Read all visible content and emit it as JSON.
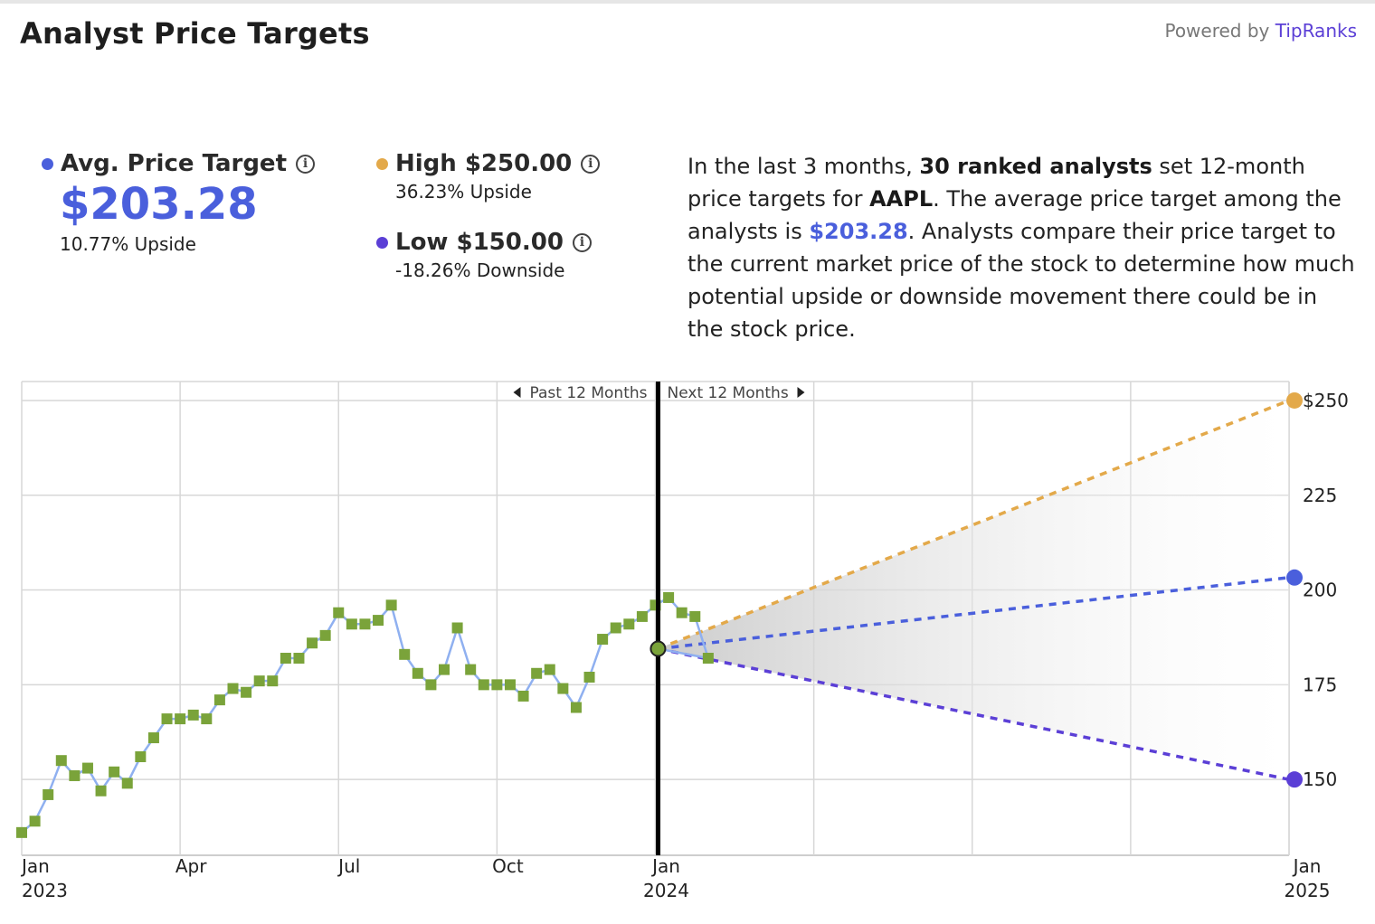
{
  "header": {
    "title": "Analyst Price Targets",
    "powered_prefix": "Powered by",
    "powered_brand": "TipRanks"
  },
  "stats": {
    "avg": {
      "label": "Avg. Price Target",
      "value": "$203.28",
      "sub": "10.77% Upside",
      "color": "#4a5fdc"
    },
    "high": {
      "label": "High $250.00",
      "sub": "36.23% Upside",
      "color": "#e3a94a"
    },
    "low": {
      "label": "Low $150.00",
      "sub": "-18.26% Downside",
      "color": "#5b3fd6"
    }
  },
  "description": {
    "p1": "In the last 3 months, ",
    "count": "30 ranked analysts",
    "p2": " set 12-month price targets for ",
    "ticker": "AAPL",
    "p3": ". The average price target among the analysts is ",
    "avg": "$203.28",
    "p4": ". Analysts compare their price target to the current market price of the stock to determine how much potential upside or downside movement there could be in the stock price."
  },
  "chart_data": {
    "type": "line",
    "x_unit": "months since Jan 2023",
    "ylim": [
      130,
      255
    ],
    "xlim": [
      0,
      24
    ],
    "y_ticks": [
      {
        "value": 150,
        "label": "150"
      },
      {
        "value": 175,
        "label": "175"
      },
      {
        "value": 200,
        "label": "200"
      },
      {
        "value": 225,
        "label": "225"
      },
      {
        "value": 250,
        "label": "$250"
      }
    ],
    "x_ticks": [
      {
        "x": 0,
        "line1": "Jan",
        "line2": "2023"
      },
      {
        "x": 3,
        "line1": "Apr",
        "line2": ""
      },
      {
        "x": 6,
        "line1": "Jul",
        "line2": ""
      },
      {
        "x": 9,
        "line1": "Oct",
        "line2": ""
      },
      {
        "x": 12,
        "line1": "Jan",
        "line2": "2024"
      },
      {
        "x": 24,
        "line1": "Jan",
        "line2": "2025"
      }
    ],
    "extra_gridlines_x": [
      15,
      18,
      21
    ],
    "split_x": 12,
    "past_label": "Past 12 Months",
    "next_label": "Next 12 Months",
    "price_series": {
      "x": [
        0,
        0.25,
        0.5,
        0.75,
        1.0,
        1.25,
        1.5,
        1.75,
        2.0,
        2.25,
        2.5,
        2.75,
        3.0,
        3.25,
        3.5,
        3.75,
        4.0,
        4.25,
        4.5,
        4.75,
        5.0,
        5.25,
        5.5,
        5.75,
        6.0,
        6.25,
        6.5,
        6.75,
        7.0,
        7.25,
        7.5,
        7.75,
        8.0,
        8.25,
        8.5,
        8.75,
        9.0,
        9.25,
        9.5,
        9.75,
        10.0,
        10.25,
        10.5,
        10.75,
        11.0,
        11.25,
        11.5,
        11.75
      ],
      "y": [
        136,
        139,
        146,
        155,
        151,
        153,
        147,
        152,
        149,
        156,
        161,
        166,
        166,
        167,
        166,
        171,
        174,
        173,
        176,
        176,
        182,
        182,
        186,
        188,
        194,
        191,
        191,
        192,
        196,
        183,
        178,
        175,
        179,
        190,
        179,
        175,
        175,
        175,
        172,
        178,
        179,
        174,
        169,
        177,
        187,
        190,
        191,
        193
      ],
      "tail_x": [
        11.75,
        12.0,
        12.25,
        12.5,
        12.75,
        13.0
      ],
      "tail_y": [
        193,
        196,
        198,
        194,
        193,
        182
      ],
      "current": {
        "x": 12.05,
        "y": 184.5
      }
    },
    "targets": {
      "start": {
        "x": 12.05,
        "y": 184.5
      },
      "end_x": 24,
      "high": 250,
      "avg": 203.28,
      "low": 150
    },
    "colors": {
      "price_line": "#8fb0f0",
      "price_marker": "#7aa33a",
      "high": "#e3a94a",
      "avg": "#4a5fdc",
      "low": "#5b3fd6",
      "grid": "#d7d7d7",
      "divider": "#000000"
    }
  }
}
